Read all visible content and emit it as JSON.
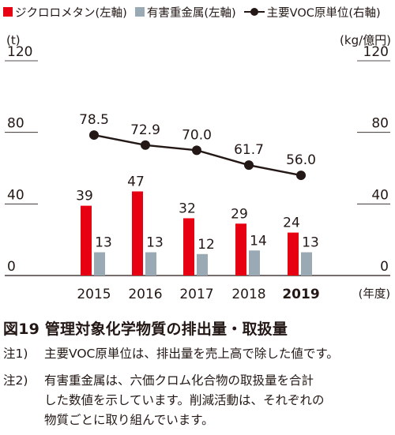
{
  "legend": [
    {
      "label": "ジクロロメタン(左軸)",
      "color": "#e60012",
      "kind": "bar"
    },
    {
      "label": "有害重金属(左軸)",
      "color": "#99aab5",
      "kind": "bar"
    },
    {
      "label": "主要VOC原単位(右軸)",
      "color": "#231815",
      "kind": "line"
    }
  ],
  "figure": {
    "title": "図19 管理対象化学物質の排出量・取扱量",
    "notes": [
      {
        "mark": "注1)",
        "lines": [
          "主要VOC原単位は、排出量を売上高で除した値です。"
        ]
      },
      {
        "mark": "注2)",
        "lines": [
          "有害重金属は、六価クロム化合物の取扱量を合計",
          "した数値を示しています。削減活動は、それぞれの",
          "物質ごとに取り組んでいます。"
        ]
      }
    ]
  },
  "chart_data": {
    "type": "bar",
    "categories": [
      "2015",
      "2016",
      "2017",
      "2018",
      "2019"
    ],
    "highlight_category": "2019",
    "x_unit_label": "(年度)",
    "left_axis": {
      "unit": "(t)",
      "ticks": [
        "120",
        "80",
        "40",
        "0"
      ],
      "range": [
        0,
        120
      ]
    },
    "right_axis": {
      "unit": "(kg/億円)",
      "ticks": [
        "120",
        "80",
        "40",
        "0"
      ],
      "range": [
        0,
        120
      ]
    },
    "series": [
      {
        "name": "ジクロロメタン(左軸)",
        "type": "bar",
        "axis": "left",
        "color": "#e60012",
        "values": [
          39,
          47,
          32,
          29,
          24
        ],
        "labels": [
          "39",
          "47",
          "32",
          "29",
          "24"
        ]
      },
      {
        "name": "有害重金属(左軸)",
        "type": "bar",
        "axis": "left",
        "color": "#99aab5",
        "values": [
          13,
          13,
          12,
          14,
          13
        ],
        "labels": [
          "13",
          "13",
          "12",
          "14",
          "13"
        ]
      },
      {
        "name": "主要VOC原単位(右軸)",
        "type": "line",
        "axis": "right",
        "color": "#231815",
        "values": [
          78.5,
          72.9,
          70.0,
          61.7,
          56.0
        ],
        "labels": [
          "78.5",
          "72.9",
          "70.0",
          "61.7",
          "56.0"
        ]
      }
    ]
  }
}
